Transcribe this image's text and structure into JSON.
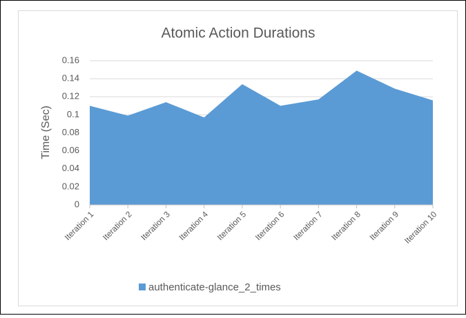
{
  "chart_data": {
    "type": "area",
    "title": "Atomic Action Durations",
    "y_label": "Time (Sec)",
    "categories": [
      "Iteration 1",
      "Iteration 2",
      "Iteration 3",
      "Iteration 4",
      "Iteration 5",
      "Iteration 6",
      "Iteration 7",
      "Iteration 8",
      "Iteration 9",
      "Iteration 10"
    ],
    "series": [
      {
        "name": "authenticate-glance_2_times",
        "color": "#5b9bd5",
        "values": [
          0.11,
          0.099,
          0.114,
          0.097,
          0.134,
          0.11,
          0.117,
          0.149,
          0.129,
          0.116
        ]
      }
    ],
    "ylim": [
      0,
      0.16
    ],
    "yticks": [
      0,
      0.02,
      0.04,
      0.06,
      0.08,
      0.1,
      0.12,
      0.14,
      0.16
    ],
    "grid": true,
    "legend": "bottom"
  }
}
